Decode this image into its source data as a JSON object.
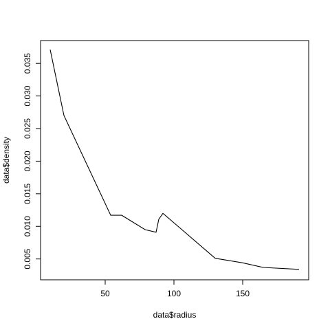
{
  "chart_data": {
    "type": "line",
    "title": "",
    "xlabel": "data$radius",
    "ylabel": "data$density",
    "xlim": [
      3,
      198
    ],
    "ylim": [
      0.0018,
      0.0385
    ],
    "x_ticks": [
      50,
      100,
      150
    ],
    "x_tick_labels": [
      "50",
      "100",
      "150"
    ],
    "y_ticks": [
      0.005,
      0.01,
      0.015,
      0.02,
      0.025,
      0.03,
      0.035
    ],
    "y_tick_labels": [
      "0.005",
      "0.010",
      "0.015",
      "0.020",
      "0.025",
      "0.030",
      "0.035"
    ],
    "grid": false,
    "line_color": "#000000",
    "series": [
      {
        "x": [
          10,
          20,
          54,
          62,
          79,
          87,
          89,
          92,
          130,
          150,
          165,
          191
        ],
        "y": [
          0.0371,
          0.027,
          0.0117,
          0.0117,
          0.0095,
          0.0091,
          0.0111,
          0.012,
          0.0051,
          0.0044,
          0.0037,
          0.0034
        ]
      }
    ]
  }
}
